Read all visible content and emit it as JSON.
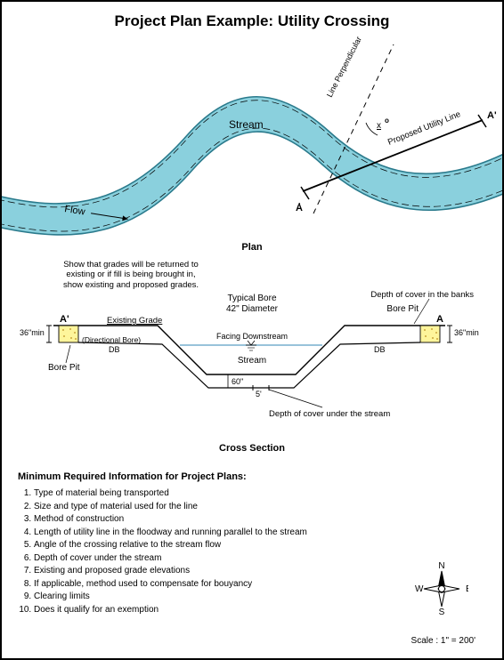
{
  "title": "Project Plan Example:  Utility Crossing",
  "colors": {
    "stream_fill": "#8ad0dd",
    "stream_stroke": "#2a7a8c",
    "pit_fill": "#fef59b",
    "pit_dots": "#caa43a",
    "water_line": "#5a9fc4"
  },
  "plan": {
    "label": "Plan",
    "stream_text": "Stream",
    "flow_text": "Flow",
    "perp_text": "Line Perpendicular to Stream Flow",
    "utility_text": "Proposed Utility Line",
    "angle_x": "x",
    "angle_deg": "o",
    "pt_a": "A",
    "pt_a2": "A'"
  },
  "cross": {
    "label": "Cross Section",
    "note_left": "Show that grades will be returned to existing or if fill is being brought in, show existing and proposed grades.",
    "bore_title": "Typical Bore",
    "bore_dia": "42\" Diameter",
    "facing": "Facing Downstream",
    "stream": "Stream",
    "grade": "Existing Grade",
    "db": "DB",
    "db_paren": "(Directional Bore)",
    "bore_pit": "Bore Pit",
    "a": "A",
    "a2": "A'",
    "min": "36\"min",
    "depth_bank": "Depth of cover in the banks",
    "depth_stream": "Depth of cover under the stream",
    "dim60": "60\"",
    "dim5": "5'"
  },
  "req": {
    "title": "Minimum Required Information for Project Plans:",
    "items": [
      "Type of material being transported",
      "Size and type of material used for the line",
      "Method of construction",
      "Length of utility line in the floodway and running parallel to the stream",
      "Angle of the crossing relative to the stream flow",
      "Depth of cover under the stream",
      "Existing and proposed grade elevations",
      "If applicable, method used to compensate for bouyancy",
      "Clearing limits",
      "Does it qualify for an exemption"
    ]
  },
  "compass": {
    "n": "N",
    "s": "S",
    "e": "E",
    "w": "W"
  },
  "scale": "Scale : 1\" = 200'"
}
